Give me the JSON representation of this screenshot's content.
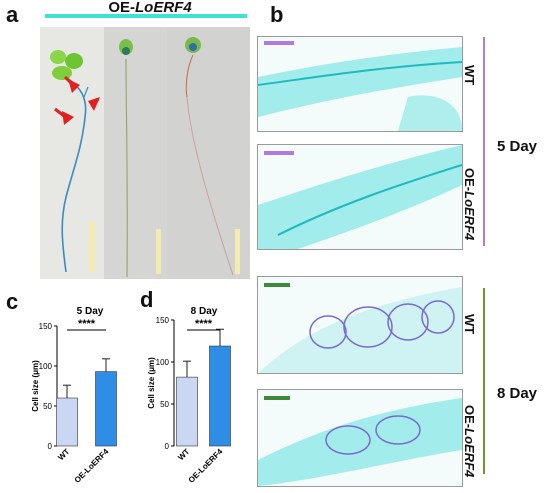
{
  "panels": {
    "a": {
      "letter": "a",
      "title_prefix": "OE-",
      "title_gene": "LoERF4",
      "accent": "#3fe0d8",
      "arrow_color": "#e4201e",
      "scale_color": "#f3ecb2"
    },
    "b": {
      "letter": "b",
      "rows": [
        {
          "genotype": "WT",
          "genotype_prefix": "",
          "genotype_gene": "",
          "scale_color": "#b07ae0"
        },
        {
          "genotype": "",
          "genotype_prefix": "OE-",
          "genotype_gene": "LoERF4",
          "scale_color": "#b07ae0"
        },
        {
          "genotype": "WT",
          "genotype_prefix": "",
          "genotype_gene": "",
          "scale_color": "#3f8a3a"
        },
        {
          "genotype": "",
          "genotype_prefix": "OE-",
          "genotype_gene": "LoERF4",
          "scale_color": "#3f8a3a"
        }
      ],
      "groups": [
        {
          "label": "5 Day",
          "color": "#b07ae0"
        },
        {
          "label": "8 Day",
          "color": "#6a9a2e"
        }
      ]
    },
    "c": {
      "letter": "c"
    },
    "d": {
      "letter": "d"
    }
  },
  "chart_data": [
    {
      "type": "bar",
      "title": "5 Day",
      "ylabel": "Cell size (μm)",
      "categories": [
        "WT",
        "OE-LoERF4"
      ],
      "values": [
        60,
        93
      ],
      "errors": [
        16,
        16
      ],
      "colors": [
        "#c9d7f2",
        "#2e8ee6"
      ],
      "ylim": [
        0,
        150
      ],
      "yticks": [
        0,
        50,
        100,
        150
      ],
      "significance": "****"
    },
    {
      "type": "bar",
      "title": "8 Day",
      "ylabel": "Cell size (μm)",
      "categories": [
        "WT",
        "OE-LoERF4"
      ],
      "values": [
        82,
        119
      ],
      "errors": [
        19,
        20
      ],
      "colors": [
        "#c9d7f2",
        "#2e8ee6"
      ],
      "ylim": [
        0,
        150
      ],
      "yticks": [
        0,
        50,
        100,
        150
      ],
      "significance": "****"
    }
  ]
}
